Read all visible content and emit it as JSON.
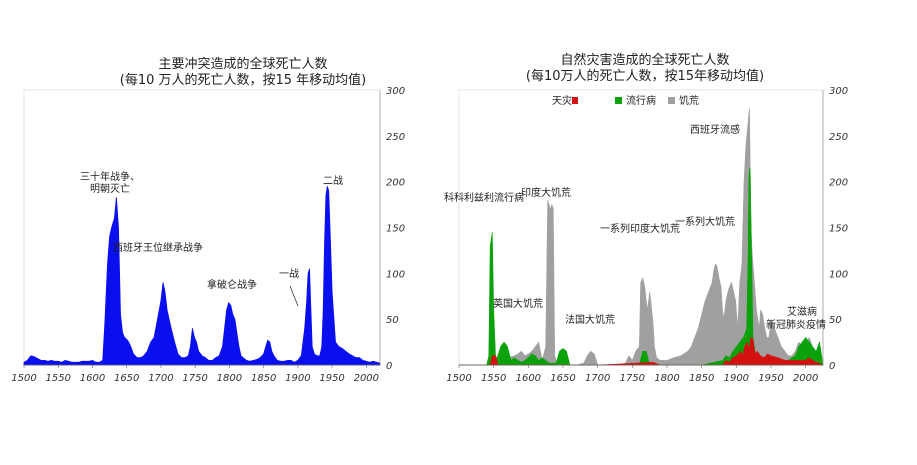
{
  "chart_data": [
    {
      "type": "area",
      "title": "主要冲突造成的全球死亡人数",
      "subtitle": "(每10 万人的死亡人数，按15 年移动均值)",
      "xlabel": "",
      "ylabel": "",
      "xlim": [
        1500,
        2020
      ],
      "ylim": [
        0,
        300
      ],
      "x_ticks": [
        "1500",
        "1550",
        "1600",
        "1650",
        "1700",
        "1750",
        "1800",
        "1850",
        "1900",
        "1950",
        "2000"
      ],
      "y_ticks": [
        "0",
        "50",
        "100",
        "150",
        "200",
        "250",
        "300"
      ],
      "y_axis_side": "right",
      "grid": false,
      "colors": {
        "conflict": "#0a0ff0"
      },
      "series": [
        {
          "x": [
            1500,
            1505,
            1510,
            1515,
            1520,
            1525,
            1530,
            1535,
            1540,
            1545,
            1550,
            1555,
            1560,
            1565,
            1570,
            1575,
            1580,
            1585,
            1590,
            1595,
            1600,
            1605,
            1610,
            1615,
            1618,
            1622,
            1625,
            1628,
            1632,
            1635,
            1638,
            1641,
            1644,
            1647,
            1650,
            1653,
            1656,
            1660,
            1665,
            1670,
            1675,
            1680,
            1685,
            1690,
            1695,
            1700,
            1703,
            1706,
            1709,
            1712,
            1715,
            1720,
            1725,
            1730,
            1735,
            1740,
            1743,
            1746,
            1749,
            1752,
            1755,
            1760,
            1765,
            1770,
            1775,
            1780,
            1785,
            1790,
            1793,
            1796,
            1799,
            1802,
            1805,
            1808,
            1811,
            1814,
            1817,
            1820,
            1825,
            1830,
            1835,
            1840,
            1845,
            1850,
            1853,
            1856,
            1859,
            1862,
            1865,
            1870,
            1875,
            1880,
            1885,
            1890,
            1895,
            1900,
            1905,
            1910,
            1913,
            1915,
            1917,
            1919,
            1921,
            1924,
            1928,
            1932,
            1935,
            1937,
            1939,
            1941,
            1943,
            1945,
            1947,
            1950,
            1955,
            1960,
            1965,
            1970,
            1975,
            1980,
            1985,
            1990,
            1995,
            2000,
            2005,
            2010,
            2015,
            2020
          ],
          "values": [
            3,
            5,
            10,
            9,
            7,
            5,
            5,
            4,
            5,
            4,
            4,
            3,
            5,
            4,
            3,
            3,
            3,
            4,
            4,
            4,
            5,
            3,
            3,
            5,
            45,
            110,
            140,
            150,
            160,
            183,
            150,
            55,
            35,
            30,
            28,
            25,
            20,
            12,
            8,
            8,
            10,
            15,
            25,
            30,
            50,
            70,
            90,
            80,
            60,
            50,
            40,
            25,
            12,
            8,
            8,
            10,
            20,
            40,
            30,
            25,
            15,
            10,
            8,
            5,
            5,
            8,
            10,
            20,
            40,
            60,
            68,
            65,
            55,
            50,
            35,
            20,
            10,
            8,
            5,
            4,
            5,
            6,
            8,
            12,
            20,
            27,
            25,
            15,
            10,
            5,
            4,
            4,
            5,
            5,
            3,
            5,
            10,
            40,
            70,
            100,
            105,
            60,
            20,
            12,
            10,
            10,
            20,
            60,
            130,
            185,
            195,
            190,
            150,
            80,
            25,
            20,
            18,
            15,
            12,
            10,
            8,
            8,
            5,
            4,
            3,
            4,
            3,
            2
          ]
        }
      ],
      "annotations": [
        "三十年战争、",
        "明朝灭亡",
        "西班牙王位继承战争",
        "拿破仑战争",
        "一战",
        "二战"
      ]
    },
    {
      "type": "area",
      "title": "自然灾害造成的全球死亡人数",
      "subtitle": "(每10万人的死亡人数，按15年移动均值)",
      "xlabel": "",
      "ylabel": "",
      "xlim": [
        1500,
        2025
      ],
      "ylim": [
        0,
        300
      ],
      "x_ticks": [
        "1500",
        "1550",
        "1600",
        "1650",
        "1700",
        "1750",
        "1800",
        "1850",
        "1900",
        "1950",
        "2000"
      ],
      "y_ticks": [
        "0",
        "50",
        "100",
        "150",
        "200",
        "250",
        "300"
      ],
      "y_axis_side": "right",
      "grid": false,
      "legend_position": "top",
      "colors": {
        "天灾": "#d41111",
        "流行病": "#0aa10a",
        "饥荒": "#a0a0a0"
      },
      "series": [
        {
          "name": "饥荒",
          "x": [
            1500,
            1540,
            1550,
            1560,
            1570,
            1580,
            1585,
            1590,
            1595,
            1600,
            1605,
            1610,
            1615,
            1620,
            1625,
            1628,
            1630,
            1632,
            1634,
            1636,
            1638,
            1640,
            1645,
            1650,
            1660,
            1670,
            1680,
            1685,
            1690,
            1695,
            1700,
            1710,
            1720,
            1730,
            1740,
            1745,
            1750,
            1755,
            1760,
            1762,
            1765,
            1768,
            1770,
            1772,
            1775,
            1778,
            1780,
            1782,
            1785,
            1790,
            1800,
            1810,
            1820,
            1830,
            1835,
            1840,
            1845,
            1850,
            1855,
            1860,
            1865,
            1868,
            1870,
            1872,
            1875,
            1878,
            1880,
            1882,
            1885,
            1888,
            1890,
            1893,
            1896,
            1899,
            1902,
            1905,
            1908,
            1911,
            1914,
            1917,
            1919,
            1921,
            1923,
            1925,
            1927,
            1929,
            1931,
            1933,
            1935,
            1938,
            1941,
            1944,
            1947,
            1950,
            1955,
            1960,
            1965,
            1970,
            1975,
            1980,
            1985,
            1990,
            1995,
            2000,
            2005,
            2010,
            2015,
            2025
          ],
          "values": [
            0,
            0,
            2,
            5,
            8,
            10,
            12,
            15,
            10,
            12,
            15,
            20,
            25,
            5,
            20,
            180,
            175,
            170,
            175,
            170,
            10,
            5,
            3,
            2,
            0,
            0,
            2,
            10,
            15,
            12,
            0,
            0,
            0,
            0,
            2,
            10,
            5,
            15,
            20,
            90,
            95,
            85,
            70,
            60,
            80,
            60,
            45,
            20,
            8,
            5,
            5,
            8,
            10,
            15,
            20,
            30,
            40,
            55,
            70,
            80,
            90,
            105,
            110,
            108,
            95,
            85,
            60,
            50,
            70,
            80,
            85,
            90,
            80,
            70,
            40,
            90,
            110,
            200,
            240,
            265,
            280,
            150,
            120,
            100,
            80,
            60,
            50,
            40,
            60,
            55,
            40,
            30,
            30,
            50,
            40,
            30,
            20,
            15,
            10,
            10,
            15,
            25,
            20,
            20,
            30,
            20,
            10,
            0
          ]
        },
        {
          "name": "流行病",
          "x": [
            1500,
            1540,
            1543,
            1545,
            1548,
            1550,
            1553,
            1556,
            1560,
            1565,
            1570,
            1575,
            1580,
            1585,
            1590,
            1595,
            1600,
            1605,
            1610,
            1615,
            1620,
            1630,
            1640,
            1645,
            1650,
            1655,
            1660,
            1700,
            1760,
            1765,
            1770,
            1775,
            1800,
            1850,
            1880,
            1885,
            1890,
            1895,
            1900,
            1905,
            1910,
            1913,
            1915,
            1917,
            1918,
            1919,
            1920,
            1922,
            1924,
            1926,
            1928,
            1935,
            1950,
            1960,
            1970,
            1975,
            1980,
            1985,
            1990,
            1995,
            2000,
            2005,
            2010,
            2015,
            2020,
            2025
          ],
          "values": [
            0,
            0,
            10,
            130,
            145,
            60,
            5,
            10,
            20,
            25,
            20,
            5,
            8,
            5,
            3,
            5,
            8,
            12,
            10,
            5,
            8,
            2,
            2,
            15,
            18,
            15,
            0,
            0,
            0,
            15,
            15,
            0,
            0,
            0,
            5,
            10,
            8,
            15,
            20,
            25,
            30,
            35,
            40,
            120,
            200,
            215,
            210,
            120,
            30,
            20,
            10,
            5,
            5,
            2,
            0,
            5,
            8,
            10,
            20,
            25,
            30,
            25,
            20,
            15,
            25,
            0
          ]
        },
        {
          "name": "天灾",
          "x": [
            1500,
            1545,
            1548,
            1553,
            1556,
            1600,
            1620,
            1700,
            1780,
            1790,
            1800,
            1850,
            1880,
            1885,
            1890,
            1895,
            1900,
            1903,
            1906,
            1909,
            1912,
            1915,
            1918,
            1921,
            1924,
            1927,
            1930,
            1935,
            1940,
            1945,
            1950,
            1960,
            1970,
            1980,
            1990,
            2000,
            2005,
            2010,
            2025
          ],
          "values": [
            0,
            0,
            10,
            10,
            0,
            0,
            0,
            0,
            3,
            0,
            0,
            0,
            0,
            5,
            3,
            8,
            10,
            12,
            15,
            10,
            20,
            25,
            18,
            30,
            28,
            12,
            15,
            10,
            8,
            12,
            10,
            8,
            5,
            5,
            5,
            5,
            8,
            5,
            0
          ]
        }
      ],
      "annotations": [
        "科科利兹利流行病",
        "印度大饥荒",
        "英国大饥荒",
        "法国大饥荒",
        "一系列印度大饥荒",
        "一系列大饥荒",
        "西班牙流感",
        "艾滋病",
        "新冠肺炎疫情"
      ]
    }
  ],
  "legend": {
    "natural_disaster": "天灾",
    "epidemic": "流行病",
    "famine": "饥荒"
  }
}
